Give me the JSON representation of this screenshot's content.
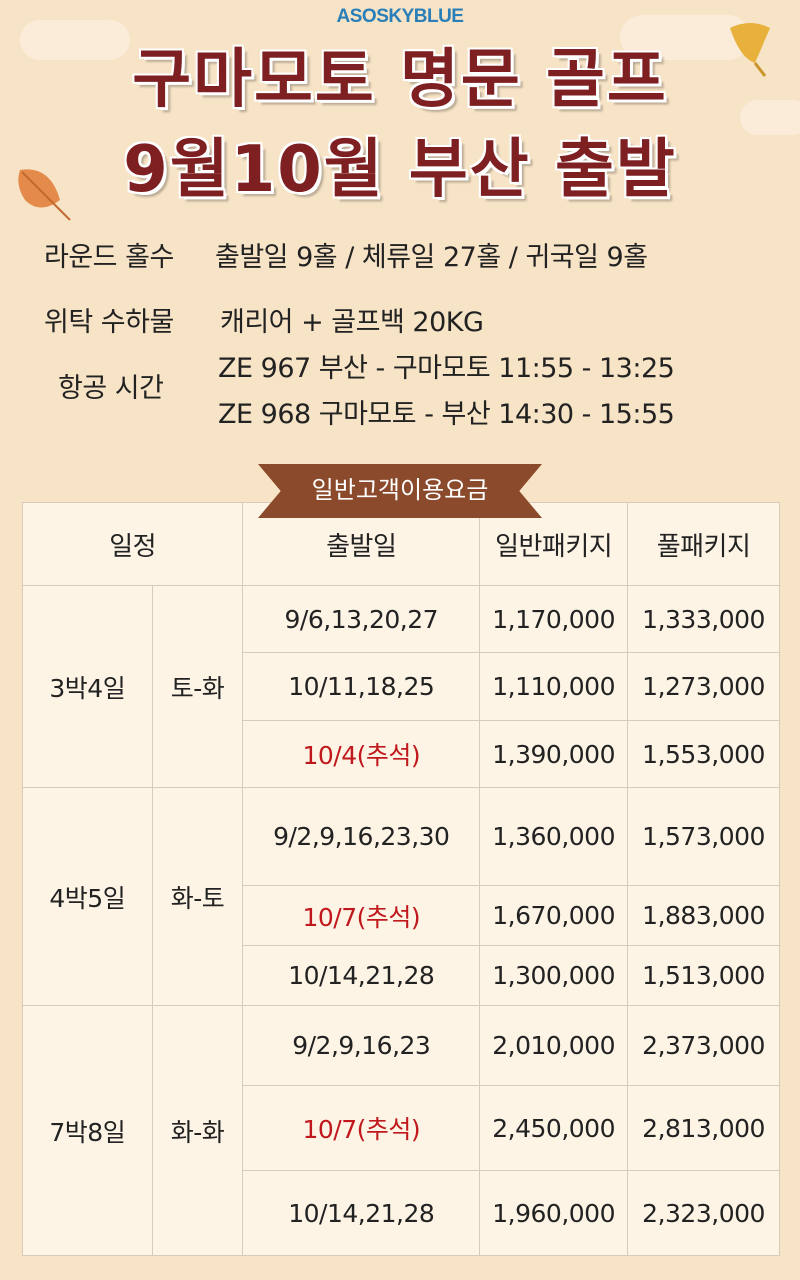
{
  "brand": "ASOSKYBLUE",
  "title_line1": "구마모토 명문 골프",
  "title_line2": "9월10월 부산 출발",
  "info": {
    "rounds_label": "라운드 홀수",
    "rounds_value": "출발일 9홀 / 체류일 27홀 / 귀국일 9홀",
    "baggage_label": "위탁 수하물",
    "baggage_value": "캐리어 + 골프백 20KG",
    "flight_label": "항공 시간",
    "flight_1": "ZE 967 부산 - 구마모토 11:55 - 13:25",
    "flight_2": "ZE 968 구마모토 - 부산 14:30 - 15:55"
  },
  "ribbon": "일반고객이용요금",
  "table": {
    "headers": [
      "일정",
      "출발일",
      "일반패키지",
      "풀패키지"
    ],
    "groups": [
      {
        "nights": "3박4일",
        "days": "토-화",
        "rows": [
          {
            "date": "9/6,13,20,27",
            "basic": "1,170,000",
            "full": "1,333,000",
            "holiday": false
          },
          {
            "date": "10/11,18,25",
            "basic": "1,110,000",
            "full": "1,273,000",
            "holiday": false
          },
          {
            "date": "10/4(추석)",
            "basic": "1,390,000",
            "full": "1,553,000",
            "holiday": true
          }
        ]
      },
      {
        "nights": "4박5일",
        "days": "화-토",
        "rows": [
          {
            "date": "9/2,9,16,23,30",
            "basic": "1,360,000",
            "full": "1,573,000",
            "holiday": false
          },
          {
            "date": "10/7(추석)",
            "basic": "1,670,000",
            "full": "1,883,000",
            "holiday": true
          },
          {
            "date": "10/14,21,28",
            "basic": "1,300,000",
            "full": "1,513,000",
            "holiday": false
          }
        ]
      },
      {
        "nights": "7박8일",
        "days": "화-화",
        "rows": [
          {
            "date": "9/2,9,16,23",
            "basic": "2,010,000",
            "full": "2,373,000",
            "holiday": false
          },
          {
            "date": "10/7(추석)",
            "basic": "2,450,000",
            "full": "2,813,000",
            "holiday": true
          },
          {
            "date": "10/14,21,28",
            "basic": "1,960,000",
            "full": "2,323,000",
            "holiday": false
          }
        ]
      }
    ]
  },
  "colors": {
    "title": "#7e1f22",
    "holiday": "#c0181c",
    "ribbon": "#8a4a2b",
    "brand": "#2a7fb8",
    "background": "#f7e3c6"
  }
}
